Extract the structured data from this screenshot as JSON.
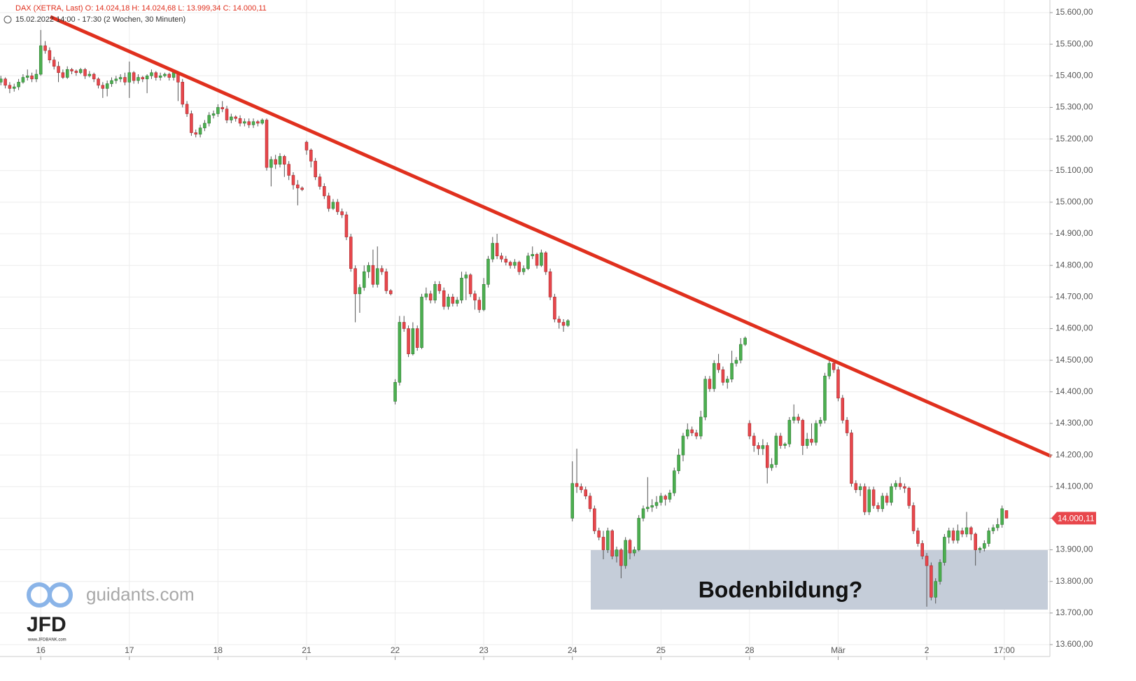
{
  "chart_data": {
    "type": "candlestick",
    "title": "DAX (XETRA, Last)  O: 14.024,18  H: 14.024,68  L: 13.999,34  C: 14.000,11",
    "subtitle": "15.02.2022 14:00 - 17:30   (2 Wochen, 30 Minuten)",
    "annotation": "Bodenbildung?",
    "last_price": {
      "value": 14000.11,
      "label": "14.000,11"
    },
    "up_color": "#4caf50",
    "down_color": "#e8474c",
    "grid": true,
    "xlim": [
      -0.2,
      236.8
    ],
    "xticks": [
      {
        "value": 9,
        "label": "16"
      },
      {
        "value": 29,
        "label": "17"
      },
      {
        "value": 49,
        "label": "18"
      },
      {
        "value": 69,
        "label": "21"
      },
      {
        "value": 89,
        "label": "22"
      },
      {
        "value": 109,
        "label": "23"
      },
      {
        "value": 129,
        "label": "24"
      },
      {
        "value": 149,
        "label": "25"
      },
      {
        "value": 169,
        "label": "28"
      },
      {
        "value": 189,
        "label": "Mär"
      },
      {
        "value": 209,
        "label": "2"
      },
      {
        "value": 226.5,
        "label": "17:00"
      }
    ],
    "ylim": [
      13600,
      15600
    ],
    "yticks": [
      {
        "value": 13600,
        "label": "13.600,00"
      },
      {
        "value": 13700,
        "label": "13.700,00"
      },
      {
        "value": 13800,
        "label": "13.800,00"
      },
      {
        "value": 13900,
        "label": "13.900,00"
      },
      {
        "value": 14000,
        "label": "14.000,00"
      },
      {
        "value": 14100,
        "label": "14.100,00"
      },
      {
        "value": 14200,
        "label": "14.200,00"
      },
      {
        "value": 14300,
        "label": "14.300,00"
      },
      {
        "value": 14400,
        "label": "14.400,00"
      },
      {
        "value": 14500,
        "label": "14.500,00"
      },
      {
        "value": 14600,
        "label": "14.600,00"
      },
      {
        "value": 14700,
        "label": "14.700,00"
      },
      {
        "value": 14800,
        "label": "14.800,00"
      },
      {
        "value": 14900,
        "label": "14.900,00"
      },
      {
        "value": 15000,
        "label": "15.000,00"
      },
      {
        "value": 15100,
        "label": "15.100,00"
      },
      {
        "value": 15200,
        "label": "15.200,00"
      },
      {
        "value": 15300,
        "label": "15.300,00"
      },
      {
        "value": 15400,
        "label": "15.400,00"
      },
      {
        "value": 15500,
        "label": "15.500,00"
      },
      {
        "value": 15600,
        "label": "15.600,00"
      }
    ],
    "open": [
      15380,
      15390,
      15370,
      15360,
      15365,
      15380,
      15395,
      15400,
      15390,
      15405,
      15495,
      15480,
      15450,
      15430,
      15410,
      15395,
      15420,
      15415,
      15410,
      15420,
      15400,
      15405,
      15390,
      15370,
      15360,
      15375,
      15385,
      15390,
      15395,
      15380,
      15410,
      15385,
      15395,
      15390,
      15400,
      15410,
      15395,
      15400,
      15405,
      15395,
      15410,
      15380,
      15310,
      15280,
      15220,
      15215,
      15235,
      15250,
      15275,
      15280,
      15300,
      15295,
      15260,
      15270,
      15265,
      15250,
      15255,
      15245,
      15255,
      15250,
      15260,
      15110,
      15135,
      15120,
      15145,
      15120,
      15085,
      15055,
      15045,
      15190,
      15165,
      15130,
      15080,
      15050,
      15020,
      14980,
      15000,
      14970,
      14960,
      14890,
      14790,
      14710,
      14730,
      14780,
      14800,
      14740,
      14790,
      14780,
      14720,
      14370,
      14430,
      14620,
      14600,
      14520,
      14600,
      14540,
      14700,
      14710,
      14690,
      14740,
      14720,
      14670,
      14700,
      14680,
      14690,
      14760,
      14770,
      14710,
      14690,
      14660,
      14740,
      14820,
      14870,
      14830,
      14820,
      14810,
      14800,
      14810,
      14780,
      14790,
      14830,
      14835,
      14800,
      14840,
      14780,
      14700,
      14630,
      14620,
      14610,
      14000,
      14110,
      14100,
      14090,
      14070,
      14030,
      13960,
      13940,
      13900,
      13960,
      13880,
      13900,
      13850,
      13930,
      13890,
      13900,
      14000,
      14030,
      14035,
      14040,
      14050,
      14070,
      14060,
      14080,
      14150,
      14200,
      14260,
      14280,
      14270,
      14260,
      14320,
      14440,
      14410,
      14490,
      14470,
      14430,
      14440,
      14490,
      14500,
      14550,
      14300,
      14260,
      14230,
      14220,
      14230,
      14160,
      14170,
      14260,
      14230,
      14235,
      14310,
      14320,
      14310,
      14230,
      14250,
      14240,
      14300,
      14310,
      14450,
      14490,
      14470,
      14380,
      14310,
      14270,
      14110,
      14090,
      14100,
      14020,
      14090,
      14040,
      14030,
      14070,
      14050,
      14100,
      14110,
      14100,
      14095,
      14040,
      13960,
      13920,
      13880,
      13850,
      13750,
      13800,
      13860,
      13940,
      13960,
      13930,
      13960,
      13950,
      13970,
      13950,
      13900,
      13905,
      13920,
      13960,
      13970,
      13980,
      14024.18
    ],
    "high": [
      15400,
      15395,
      15380,
      15375,
      15390,
      15405,
      15420,
      15410,
      15420,
      15545,
      15510,
      15490,
      15460,
      15445,
      15420,
      15430,
      15425,
      15420,
      15425,
      15425,
      15415,
      15410,
      15395,
      15380,
      15385,
      15395,
      15400,
      15405,
      15410,
      15445,
      15415,
      15405,
      15400,
      15405,
      15420,
      15415,
      15410,
      15410,
      15410,
      15415,
      15415,
      15390,
      15320,
      15290,
      15230,
      15245,
      15260,
      15285,
      15290,
      15310,
      15320,
      15305,
      15280,
      15275,
      15275,
      15265,
      15265,
      15265,
      15260,
      15265,
      15265,
      15145,
      15150,
      15155,
      15150,
      15130,
      15095,
      15070,
      15050,
      15195,
      15170,
      15140,
      15090,
      15060,
      15030,
      15010,
      15010,
      14980,
      14970,
      14900,
      14800,
      14740,
      14800,
      14810,
      14850,
      14860,
      14800,
      14790,
      14725,
      14440,
      14640,
      14640,
      14610,
      14620,
      14610,
      14710,
      14730,
      14720,
      14750,
      14750,
      14730,
      14710,
      14710,
      14700,
      14780,
      14780,
      14775,
      14720,
      14700,
      14760,
      14830,
      14890,
      14900,
      14840,
      14830,
      14815,
      14820,
      14815,
      14800,
      14840,
      14860,
      14840,
      14850,
      14845,
      14790,
      14710,
      14640,
      14630,
      14630,
      14180,
      14220,
      14110,
      14100,
      14080,
      14040,
      13970,
      13960,
      13970,
      13965,
      13910,
      13905,
      13940,
      13935,
      13910,
      14010,
      14040,
      14130,
      14060,
      14070,
      14080,
      14075,
      14090,
      14160,
      14220,
      14270,
      14300,
      14290,
      14280,
      14340,
      14450,
      14450,
      14500,
      14520,
      14480,
      14450,
      14530,
      14510,
      14570,
      14575,
      14310,
      14270,
      14240,
      14250,
      14240,
      14190,
      14270,
      14270,
      14240,
      14320,
      14360,
      14330,
      14315,
      14270,
      14300,
      14310,
      14320,
      14460,
      14510,
      14495,
      14480,
      14390,
      14320,
      14280,
      14120,
      14110,
      14110,
      14100,
      14100,
      14050,
      14080,
      14080,
      14110,
      14120,
      14130,
      14110,
      14100,
      14050,
      13970,
      13930,
      13890,
      13860,
      13810,
      13870,
      13950,
      13970,
      13970,
      13980,
      13970,
      14020,
      13975,
      13955,
      13910,
      13930,
      13970,
      13980,
      14000,
      14040,
      14024.68
    ],
    "low": [
      15370,
      15360,
      15345,
      15350,
      15355,
      15375,
      15385,
      15380,
      15380,
      15400,
      15470,
      15440,
      15420,
      15380,
      15390,
      15390,
      15405,
      15400,
      15405,
      15390,
      15395,
      15380,
      15360,
      15330,
      15335,
      15365,
      15375,
      15380,
      15370,
      15330,
      15375,
      15375,
      15380,
      15345,
      15390,
      15385,
      15385,
      15395,
      15385,
      15385,
      15320,
      15300,
      15270,
      15210,
      15205,
      15205,
      15225,
      15240,
      15265,
      15270,
      15285,
      15250,
      15250,
      15255,
      15240,
      15240,
      15235,
      15235,
      15240,
      15245,
      15100,
      15050,
      15105,
      15110,
      15080,
      15070,
      15040,
      14990,
      15035,
      15150,
      15110,
      15070,
      15040,
      15010,
      14970,
      14975,
      14960,
      14950,
      14880,
      14780,
      14620,
      14650,
      14720,
      14760,
      14730,
      14730,
      14770,
      14710,
      14705,
      14360,
      14420,
      14590,
      14510,
      14515,
      14530,
      14535,
      14690,
      14680,
      14680,
      14710,
      14660,
      14660,
      14670,
      14670,
      14680,
      14690,
      14700,
      14660,
      14650,
      14655,
      14730,
      14810,
      14820,
      14810,
      14800,
      14790,
      14790,
      14770,
      14770,
      14785,
      14820,
      14790,
      14795,
      14770,
      14690,
      14620,
      14600,
      14590,
      14605,
      13990,
      14080,
      14080,
      14060,
      14020,
      13950,
      13930,
      13870,
      13890,
      13870,
      13860,
      13810,
      13840,
      13870,
      13880,
      13895,
      13990,
      14020,
      14020,
      14030,
      14040,
      14040,
      14050,
      14070,
      14140,
      14180,
      14250,
      14260,
      14250,
      14250,
      14310,
      14400,
      14400,
      14460,
      14420,
      14410,
      14430,
      14480,
      14490,
      14545,
      14250,
      14210,
      14200,
      14200,
      14110,
      14150,
      14160,
      14220,
      14220,
      14225,
      14300,
      14300,
      14200,
      14220,
      14230,
      14230,
      14290,
      14300,
      14440,
      14460,
      14370,
      14300,
      14260,
      14100,
      14080,
      14070,
      14010,
      14010,
      14030,
      14020,
      14020,
      14040,
      14040,
      14090,
      14090,
      14080,
      14030,
      13950,
      13910,
      13870,
      13720,
      13740,
      13730,
      13790,
      13850,
      13920,
      13920,
      13920,
      13940,
      13940,
      13930,
      13850,
      13890,
      13895,
      13910,
      13950,
      13960,
      13970,
      13999.34
    ],
    "close": [
      15390,
      15370,
      15360,
      15365,
      15380,
      15395,
      15400,
      15390,
      15405,
      15495,
      15480,
      15450,
      15430,
      15410,
      15395,
      15420,
      15415,
      15410,
      15420,
      15400,
      15405,
      15390,
      15370,
      15360,
      15375,
      15385,
      15390,
      15395,
      15380,
      15410,
      15385,
      15395,
      15390,
      15400,
      15410,
      15395,
      15400,
      15405,
      15395,
      15410,
      15380,
      15310,
      15280,
      15220,
      15215,
      15235,
      15250,
      15275,
      15280,
      15300,
      15295,
      15260,
      15270,
      15265,
      15250,
      15255,
      15245,
      15255,
      15250,
      15260,
      15110,
      15135,
      15120,
      15145,
      15120,
      15085,
      15055,
      15045,
      15040,
      15165,
      15130,
      15080,
      15050,
      15020,
      14980,
      15000,
      14970,
      14960,
      14890,
      14790,
      14710,
      14730,
      14780,
      14800,
      14740,
      14790,
      14780,
      14720,
      14710,
      14430,
      14620,
      14600,
      14520,
      14600,
      14540,
      14700,
      14710,
      14690,
      14740,
      14720,
      14670,
      14700,
      14680,
      14690,
      14760,
      14770,
      14710,
      14690,
      14660,
      14740,
      14820,
      14870,
      14830,
      14820,
      14810,
      14800,
      14810,
      14780,
      14790,
      14830,
      14835,
      14800,
      14840,
      14780,
      14700,
      14630,
      14620,
      14610,
      14625,
      14110,
      14100,
      14090,
      14070,
      14030,
      13960,
      13940,
      13900,
      13960,
      13880,
      13900,
      13850,
      13930,
      13890,
      13900,
      14000,
      14030,
      14035,
      14040,
      14050,
      14070,
      14060,
      14080,
      14150,
      14200,
      14260,
      14280,
      14270,
      14260,
      14320,
      14440,
      14410,
      14490,
      14470,
      14430,
      14440,
      14490,
      14500,
      14550,
      14570,
      14260,
      14230,
      14220,
      14230,
      14160,
      14170,
      14260,
      14230,
      14235,
      14310,
      14320,
      14310,
      14230,
      14250,
      14240,
      14300,
      14310,
      14450,
      14490,
      14470,
      14380,
      14310,
      14270,
      14110,
      14090,
      14100,
      14020,
      14090,
      14040,
      14030,
      14070,
      14050,
      14100,
      14110,
      14100,
      14095,
      14040,
      13960,
      13920,
      13880,
      13850,
      13750,
      13800,
      13860,
      13940,
      13960,
      13930,
      13960,
      13950,
      13970,
      13950,
      13900,
      13905,
      13920,
      13960,
      13970,
      13980,
      14030,
      14000.11
    ]
  },
  "brand": {
    "site": "guidants.com",
    "logo": "JFD",
    "url": "www.JFDBANK.com"
  }
}
